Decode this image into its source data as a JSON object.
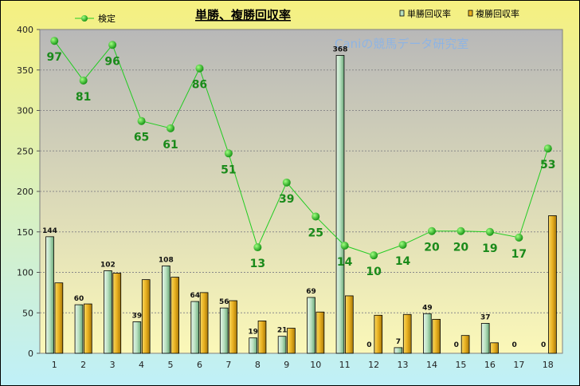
{
  "chart_data": {
    "type": "bar",
    "title": "単勝、複勝回収率",
    "watermark": "Caniの競馬データ研究室",
    "categories": [
      "1",
      "2",
      "3",
      "4",
      "5",
      "6",
      "7",
      "8",
      "9",
      "10",
      "11",
      "12",
      "13",
      "14",
      "15",
      "16",
      "17",
      "18"
    ],
    "ylim": [
      0,
      400
    ],
    "yticks": [
      0,
      50,
      100,
      150,
      200,
      250,
      300,
      350,
      400
    ],
    "grid": true,
    "legend_placement": "top",
    "series": [
      {
        "name": "単勝回収率",
        "kind": "bar",
        "color": "#b8e0c0",
        "values": [
          144,
          60,
          102,
          39,
          108,
          64,
          56,
          19,
          21,
          69,
          368,
          0,
          7,
          49,
          0,
          37,
          0,
          0
        ],
        "labels": [
          "144",
          "60",
          "102",
          "39",
          "108",
          "64",
          "56",
          "19",
          "21",
          "69",
          "368",
          "0",
          "7",
          "49",
          "0",
          "37",
          "0",
          "0"
        ]
      },
      {
        "name": "複勝回収率",
        "kind": "bar",
        "color": "#e8b020",
        "values": [
          87,
          61,
          99,
          91,
          94,
          75,
          65,
          40,
          31,
          51,
          71,
          47,
          48,
          42,
          22,
          13,
          0,
          170
        ]
      },
      {
        "name": "検定",
        "kind": "line",
        "color": "#22cc22",
        "values": [
          386,
          337,
          381,
          287,
          278,
          352,
          247,
          131,
          211,
          169,
          133,
          121,
          134,
          151,
          151,
          150,
          143,
          253
        ],
        "labels": [
          "97",
          "81",
          "96",
          "65",
          "61",
          "86",
          "51",
          "13",
          "39",
          "25",
          "14",
          "10",
          "14",
          "20",
          "20",
          "19",
          "17",
          "53"
        ]
      }
    ]
  }
}
